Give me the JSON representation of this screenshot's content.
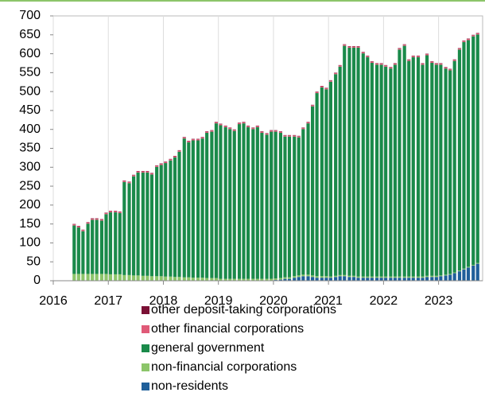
{
  "chart_data": {
    "type": "stacked-bar",
    "x": [
      2016.38,
      2016.46,
      2016.54,
      2016.63,
      2016.71,
      2016.79,
      2016.88,
      2016.96,
      2017.04,
      2017.13,
      2017.21,
      2017.29,
      2017.38,
      2017.46,
      2017.54,
      2017.63,
      2017.71,
      2017.79,
      2017.88,
      2017.96,
      2018.04,
      2018.13,
      2018.21,
      2018.29,
      2018.38,
      2018.46,
      2018.54,
      2018.63,
      2018.71,
      2018.79,
      2018.88,
      2018.96,
      2019.04,
      2019.13,
      2019.21,
      2019.29,
      2019.38,
      2019.46,
      2019.54,
      2019.63,
      2019.71,
      2019.79,
      2019.88,
      2019.96,
      2020.04,
      2020.13,
      2020.21,
      2020.29,
      2020.38,
      2020.46,
      2020.54,
      2020.63,
      2020.71,
      2020.79,
      2020.88,
      2020.96,
      2021.04,
      2021.13,
      2021.21,
      2021.29,
      2021.38,
      2021.46,
      2021.54,
      2021.63,
      2021.71,
      2021.79,
      2021.88,
      2021.96,
      2022.04,
      2022.13,
      2022.21,
      2022.29,
      2022.38,
      2022.46,
      2022.54,
      2022.63,
      2022.71,
      2022.79,
      2022.88,
      2022.96,
      2023.04,
      2023.13,
      2023.21,
      2023.29,
      2023.38,
      2023.46,
      2023.54,
      2023.63,
      2023.71
    ],
    "series": [
      {
        "name": "non-residents",
        "color": "#1f5f9a",
        "values": [
          0,
          0,
          0,
          0,
          0,
          0,
          0,
          0,
          0,
          0,
          0,
          0,
          0,
          0,
          0,
          0,
          0,
          0,
          0,
          0,
          0,
          0,
          0,
          0,
          0,
          0,
          0,
          0,
          0,
          0,
          0,
          0,
          0,
          0,
          0,
          0,
          0,
          0,
          0,
          0,
          0,
          0,
          0,
          0,
          2,
          3,
          5,
          5,
          8,
          10,
          12,
          12,
          10,
          8,
          8,
          8,
          8,
          10,
          12,
          12,
          10,
          10,
          8,
          8,
          8,
          8,
          8,
          8,
          8,
          8,
          8,
          8,
          8,
          8,
          8,
          8,
          8,
          10,
          10,
          10,
          12,
          14,
          16,
          20,
          25,
          30,
          35,
          40,
          45
        ]
      },
      {
        "name": "non-financial corporations",
        "color": "#8cc56a",
        "values": [
          18,
          18,
          18,
          18,
          18,
          18,
          18,
          18,
          17,
          17,
          17,
          15,
          15,
          14,
          14,
          13,
          13,
          12,
          12,
          12,
          11,
          11,
          10,
          10,
          9,
          9,
          8,
          8,
          8,
          7,
          7,
          7,
          5,
          5,
          5,
          5,
          5,
          5,
          5,
          5,
          5,
          5,
          5,
          5,
          4,
          4,
          4,
          4,
          4,
          4,
          4,
          4,
          4,
          4,
          4,
          4,
          3,
          3,
          3,
          3,
          3,
          3,
          3,
          3,
          3,
          3,
          3,
          3,
          3,
          3,
          3,
          3,
          3,
          3,
          3,
          3,
          3,
          3,
          3,
          3,
          2,
          2,
          2,
          2,
          2,
          2,
          2,
          2,
          2
        ]
      },
      {
        "name": "general government",
        "color": "#1a8a4a",
        "values": [
          128,
          123,
          113,
          133,
          143,
          143,
          141,
          158,
          164,
          164,
          162,
          246,
          243,
          262,
          272,
          273,
          273,
          269,
          289,
          294,
          300,
          307,
          316,
          331,
          367,
          357,
          363,
          363,
          368,
          384,
          387,
          409,
          406,
          401,
          396,
          391,
          409,
          411,
          401,
          396,
          401,
          386,
          381,
          389,
          388,
          384,
          372,
          372,
          369,
          365,
          385,
          400,
          447,
          484,
          499,
          494,
          515,
          533,
          551,
          606,
          603,
          603,
          605,
          590,
          580,
          565,
          560,
          560,
          555,
          550,
          560,
          600,
          610,
          570,
          580,
          580,
          560,
          583,
          563,
          558,
          557,
          545,
          538,
          559,
          584,
          599,
          599,
          604,
          604
        ]
      },
      {
        "name": "other financial corporations",
        "color": "#e05a78",
        "values": [
          3,
          3,
          3,
          3,
          3,
          3,
          3,
          3,
          3,
          3,
          3,
          3,
          3,
          3,
          3,
          3,
          3,
          3,
          3,
          3,
          3,
          3,
          3,
          3,
          3,
          3,
          3,
          3,
          3,
          3,
          3,
          3,
          3,
          3,
          3,
          3,
          3,
          3,
          3,
          3,
          3,
          3,
          3,
          3,
          3,
          3,
          3,
          3,
          3,
          3,
          3,
          3,
          3,
          3,
          3,
          3,
          3,
          3,
          3,
          3,
          3,
          3,
          3,
          3,
          3,
          3,
          3,
          3,
          3,
          3,
          3,
          3,
          3,
          3,
          3,
          3,
          3,
          3,
          3,
          3,
          3,
          3,
          3,
          3,
          3,
          3,
          3,
          3,
          3
        ]
      },
      {
        "name": "other deposit-taking corporations",
        "color": "#7b1035",
        "values": [
          1,
          1,
          1,
          1,
          1,
          1,
          1,
          1,
          1,
          1,
          1,
          1,
          1,
          1,
          1,
          1,
          1,
          1,
          1,
          1,
          1,
          1,
          1,
          1,
          1,
          1,
          1,
          1,
          1,
          1,
          1,
          1,
          1,
          1,
          1,
          1,
          1,
          1,
          1,
          1,
          1,
          1,
          1,
          1,
          1,
          1,
          1,
          1,
          1,
          1,
          1,
          1,
          1,
          1,
          1,
          1,
          1,
          1,
          1,
          1,
          1,
          1,
          1,
          1,
          1,
          1,
          1,
          1,
          1,
          1,
          1,
          1,
          1,
          1,
          1,
          1,
          1,
          1,
          1,
          1,
          1,
          1,
          1,
          1,
          1,
          1,
          1,
          1,
          1
        ]
      }
    ],
    "xlim": [
      2016,
      2023.8
    ],
    "xticks": [
      2016,
      2017,
      2018,
      2019,
      2020,
      2021,
      2022,
      2023
    ],
    "ylim": [
      0,
      700
    ],
    "yticks": [
      0,
      50,
      100,
      150,
      200,
      250,
      300,
      350,
      400,
      450,
      500,
      550,
      600,
      650,
      700
    ],
    "grid": "x"
  }
}
